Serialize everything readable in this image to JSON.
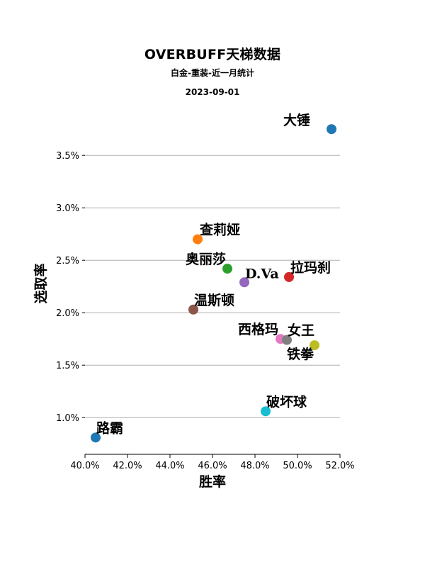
{
  "header": {
    "title": "OVERBUFF天梯数据",
    "subtitle": "白金-重装-近一月统计",
    "date": "2023-09-01"
  },
  "chart_data": {
    "type": "scatter",
    "title": "OVERBUFF天梯数据",
    "subtitle": "白金-重装-近一月统计",
    "xlabel": "胜率",
    "ylabel": "选取率",
    "xlim": [
      40.0,
      52.0
    ],
    "ylim": [
      0.65,
      3.9
    ],
    "x_ticks": [
      40.0,
      42.0,
      44.0,
      46.0,
      48.0,
      50.0,
      52.0
    ],
    "x_tick_labels": [
      "40.0%",
      "42.0%",
      "44.0%",
      "46.0%",
      "48.0%",
      "50.0%",
      "52.0%"
    ],
    "y_ticks": [
      1.0,
      1.5,
      2.0,
      2.5,
      3.0,
      3.5
    ],
    "y_tick_labels": [
      "1.0%",
      "1.5%",
      "2.0%",
      "2.5%",
      "3.0%",
      "3.5%"
    ],
    "grid": "horizontal",
    "legend": "none",
    "points": [
      {
        "label": "大锤",
        "x": 51.6,
        "y": 3.75,
        "color": "#1f77b4"
      },
      {
        "label": "查莉娅",
        "x": 45.3,
        "y": 2.7,
        "color": "#ff7f0e"
      },
      {
        "label": "奥丽莎",
        "x": 46.7,
        "y": 2.42,
        "color": "#2ca02c"
      },
      {
        "label": "拉玛刹",
        "x": 49.6,
        "y": 2.34,
        "color": "#d62728"
      },
      {
        "label": "D.Va",
        "x": 47.5,
        "y": 2.29,
        "color": "#9467bd"
      },
      {
        "label": "温斯顿",
        "x": 45.1,
        "y": 2.03,
        "color": "#8c564b"
      },
      {
        "label": "西格玛",
        "x": 49.2,
        "y": 1.75,
        "color": "#e377c2"
      },
      {
        "label": "女王",
        "x": 49.5,
        "y": 1.74,
        "color": "#7f7f7f"
      },
      {
        "label": "铁拳",
        "x": 50.8,
        "y": 1.69,
        "color": "#bcbd22"
      },
      {
        "label": "破坏球",
        "x": 48.5,
        "y": 1.06,
        "color": "#17becf"
      },
      {
        "label": "路霸",
        "x": 40.5,
        "y": 0.81,
        "color": "#1f77b4"
      }
    ]
  }
}
